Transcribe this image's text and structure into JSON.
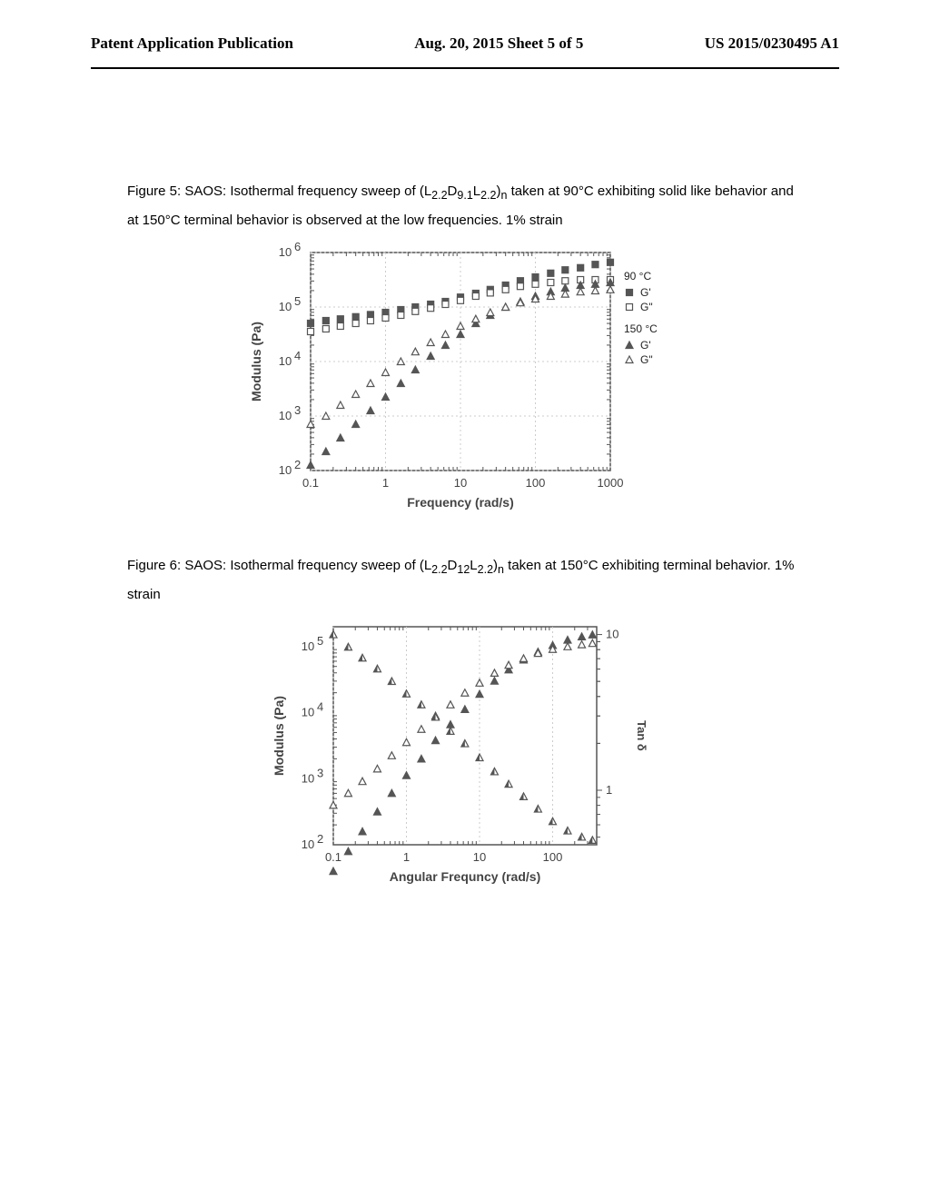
{
  "header": {
    "left": "Patent Application Publication",
    "center": "Aug. 20, 2015  Sheet 5 of 5",
    "right": "US 2015/0230495 A1"
  },
  "fig5": {
    "caption_prefix": "Figure 5:  SAOS: Isothermal frequency sweep of (L",
    "subscript1": "2.2",
    "mid1": "D",
    "subscript2": "9.1",
    "mid2": "L",
    "subscript3": "2.2",
    "close": ")",
    "subscriptn": "n",
    "caption_suffix": "  taken at 90°C exhibiting solid like behavior and at 150°C terminal behavior is observed at the low frequencies. 1% strain",
    "xlabel": "Frequency (rad/s)",
    "ylabel": "Modulus (Pa)",
    "xticks": [
      "0.1",
      "1",
      "10",
      "100",
      "1000"
    ],
    "yticks": [
      "10",
      "10",
      "10",
      "10",
      "10"
    ],
    "yexps": [
      "2",
      "3",
      "4",
      "5",
      "6"
    ],
    "legend_title1": "90 °C",
    "legend_title2": "150 °C",
    "legend_g1": "G'",
    "legend_g2": "G\"",
    "series": {
      "g90p": [
        [
          0.1,
          4.7
        ],
        [
          0.16,
          4.75
        ],
        [
          0.25,
          4.78
        ],
        [
          0.4,
          4.82
        ],
        [
          0.63,
          4.86
        ],
        [
          1,
          4.9
        ],
        [
          1.6,
          4.95
        ],
        [
          2.5,
          5.0
        ],
        [
          4,
          5.05
        ],
        [
          6.3,
          5.1
        ],
        [
          10,
          5.18
        ],
        [
          16,
          5.25
        ],
        [
          25,
          5.32
        ],
        [
          40,
          5.4
        ],
        [
          63,
          5.48
        ],
        [
          100,
          5.55
        ],
        [
          160,
          5.62
        ],
        [
          250,
          5.68
        ],
        [
          400,
          5.72
        ],
        [
          630,
          5.78
        ],
        [
          1000,
          5.82
        ]
      ],
      "g90dp": [
        [
          0.1,
          4.55
        ],
        [
          0.16,
          4.6
        ],
        [
          0.25,
          4.65
        ],
        [
          0.4,
          4.7
        ],
        [
          0.63,
          4.75
        ],
        [
          1,
          4.8
        ],
        [
          1.6,
          4.85
        ],
        [
          2.5,
          4.92
        ],
        [
          4,
          4.98
        ],
        [
          6.3,
          5.05
        ],
        [
          10,
          5.12
        ],
        [
          16,
          5.2
        ],
        [
          25,
          5.26
        ],
        [
          40,
          5.32
        ],
        [
          63,
          5.38
        ],
        [
          100,
          5.42
        ],
        [
          160,
          5.45
        ],
        [
          250,
          5.48
        ],
        [
          400,
          5.5
        ],
        [
          630,
          5.5
        ],
        [
          1000,
          5.5
        ]
      ],
      "g150p": [
        [
          0.1,
          2.1
        ],
        [
          0.16,
          2.35
        ],
        [
          0.25,
          2.6
        ],
        [
          0.4,
          2.85
        ],
        [
          0.63,
          3.1
        ],
        [
          1,
          3.35
        ],
        [
          1.6,
          3.6
        ],
        [
          2.5,
          3.85
        ],
        [
          4,
          4.1
        ],
        [
          6.3,
          4.3
        ],
        [
          10,
          4.5
        ],
        [
          16,
          4.7
        ],
        [
          25,
          4.85
        ],
        [
          40,
          5.0
        ],
        [
          63,
          5.1
        ],
        [
          100,
          5.2
        ],
        [
          160,
          5.28
        ],
        [
          250,
          5.35
        ],
        [
          400,
          5.4
        ],
        [
          630,
          5.42
        ],
        [
          1000,
          5.45
        ]
      ],
      "g150dp": [
        [
          0.1,
          2.85
        ],
        [
          0.16,
          3.0
        ],
        [
          0.25,
          3.2
        ],
        [
          0.4,
          3.4
        ],
        [
          0.63,
          3.6
        ],
        [
          1,
          3.8
        ],
        [
          1.6,
          4.0
        ],
        [
          2.5,
          4.18
        ],
        [
          4,
          4.35
        ],
        [
          6.3,
          4.5
        ],
        [
          10,
          4.65
        ],
        [
          16,
          4.78
        ],
        [
          25,
          4.9
        ],
        [
          40,
          5.0
        ],
        [
          63,
          5.08
        ],
        [
          100,
          5.15
        ],
        [
          160,
          5.2
        ],
        [
          250,
          5.24
        ],
        [
          400,
          5.28
        ],
        [
          630,
          5.3
        ],
        [
          1000,
          5.32
        ]
      ]
    },
    "colors": {
      "fill": "#555555",
      "stroke": "#555555",
      "grid": "#cccccc",
      "axis": "#555555"
    }
  },
  "fig6": {
    "caption_prefix": "Figure 6:  SAOS: Isothermal frequency sweep of (L",
    "subscript1": "2.2",
    "mid1": "D",
    "subscript2": "12",
    "mid2": "L",
    "subscript3": "2.2",
    "close": ")",
    "subscriptn": "n",
    "caption_suffix": "  taken at 150°C exhibiting terminal behavior. 1% strain",
    "xlabel": "Angular Frequncy (rad/s)",
    "ylabel": "Modulus (Pa)",
    "ylabel2": "Tan δ",
    "xticks": [
      "0.1",
      "1",
      "10",
      "100"
    ],
    "yticks": [
      "10",
      "10",
      "10",
      "10"
    ],
    "yexps": [
      "2",
      "3",
      "4",
      "5"
    ],
    "y2ticks": [
      "1",
      "10"
    ],
    "series": {
      "gp": [
        [
          0.1,
          1.6
        ],
        [
          0.16,
          1.9
        ],
        [
          0.25,
          2.2
        ],
        [
          0.4,
          2.5
        ],
        [
          0.63,
          2.78
        ],
        [
          1,
          3.05
        ],
        [
          1.6,
          3.3
        ],
        [
          2.5,
          3.58
        ],
        [
          4,
          3.82
        ],
        [
          6.3,
          4.05
        ],
        [
          10,
          4.28
        ],
        [
          16,
          4.48
        ],
        [
          25,
          4.65
        ],
        [
          40,
          4.8
        ],
        [
          63,
          4.92
        ],
        [
          100,
          5.02
        ],
        [
          160,
          5.1
        ],
        [
          250,
          5.15
        ],
        [
          350,
          5.18
        ]
      ],
      "gdp": [
        [
          0.1,
          2.6
        ],
        [
          0.16,
          2.78
        ],
        [
          0.25,
          2.96
        ],
        [
          0.4,
          3.15
        ],
        [
          0.63,
          3.35
        ],
        [
          1,
          3.55
        ],
        [
          1.6,
          3.75
        ],
        [
          2.5,
          3.95
        ],
        [
          4,
          4.12
        ],
        [
          6.3,
          4.3
        ],
        [
          10,
          4.45
        ],
        [
          16,
          4.6
        ],
        [
          25,
          4.72
        ],
        [
          40,
          4.82
        ],
        [
          63,
          4.9
        ],
        [
          100,
          4.96
        ],
        [
          160,
          5.0
        ],
        [
          250,
          5.03
        ],
        [
          350,
          5.05
        ]
      ],
      "tand": [
        [
          0.1,
          1.0
        ],
        [
          0.16,
          0.92
        ],
        [
          0.25,
          0.85
        ],
        [
          0.4,
          0.78
        ],
        [
          0.63,
          0.7
        ],
        [
          1,
          0.62
        ],
        [
          1.6,
          0.55
        ],
        [
          2.5,
          0.47
        ],
        [
          4,
          0.38
        ],
        [
          6.3,
          0.3
        ],
        [
          10,
          0.21
        ],
        [
          16,
          0.12
        ],
        [
          25,
          0.04
        ],
        [
          40,
          -0.04
        ],
        [
          63,
          -0.12
        ],
        [
          100,
          -0.2
        ],
        [
          160,
          -0.26
        ],
        [
          250,
          -0.3
        ],
        [
          350,
          -0.32
        ]
      ]
    },
    "colors": {
      "fill": "#555555",
      "stroke": "#555555",
      "grid": "#cccccc",
      "axis": "#555555"
    }
  }
}
